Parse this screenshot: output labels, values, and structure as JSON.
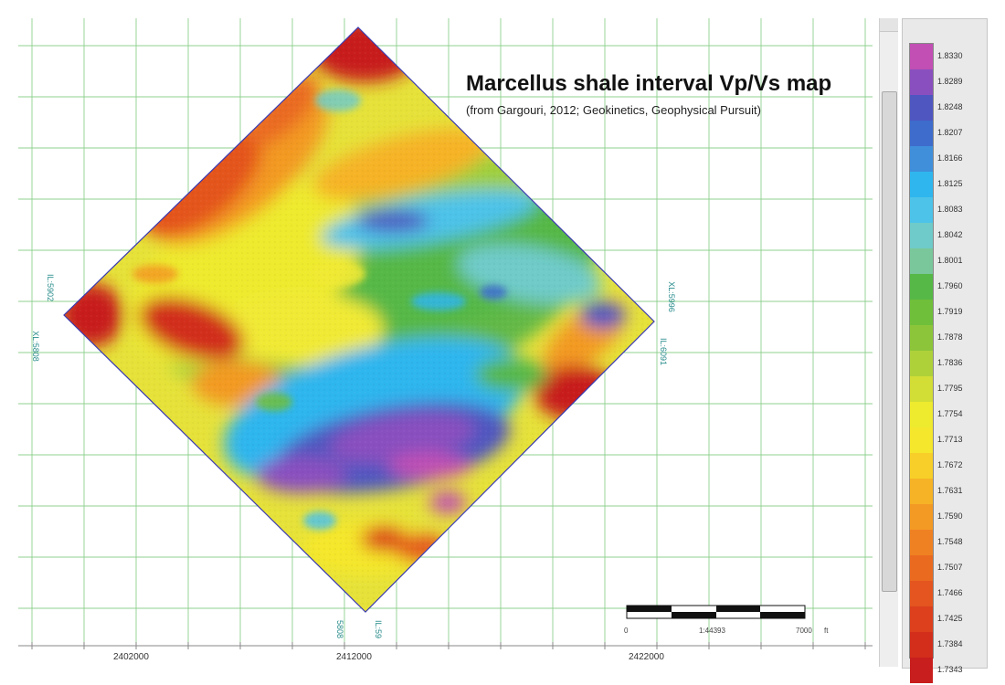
{
  "title": "Marcellus shale interval Vp/Vs map",
  "subtitle": "(from Gargouri, 2012; Geokinetics, Geophysical Pursuit)",
  "x_axis_labels": [
    "2402000",
    "2412000",
    "2422000"
  ],
  "scale_bar": {
    "start": "0",
    "ratio": "1:44393",
    "end": "7000",
    "unit": "ft"
  },
  "corner_labels": {
    "left_upper": "IL:5902",
    "left_lower": "XL:5808",
    "right_upper": "XL:5996",
    "right_lower": "IL:6091",
    "bottom_left": "5808",
    "bottom_right": "IL:59"
  },
  "legend": {
    "values": [
      "1.8330",
      "1.8289",
      "1.8248",
      "1.8207",
      "1.8166",
      "1.8125",
      "1.8083",
      "1.8042",
      "1.8001",
      "1.7960",
      "1.7919",
      "1.7878",
      "1.7836",
      "1.7795",
      "1.7754",
      "1.7713",
      "1.7672",
      "1.7631",
      "1.7590",
      "1.7548",
      "1.7507",
      "1.7466",
      "1.7425",
      "1.7384",
      "1.7343"
    ],
    "colors": [
      "#c14fb4",
      "#8a4fbf",
      "#4f56c0",
      "#3d6ccc",
      "#3f8fdb",
      "#2fb6ee",
      "#4ec3e9",
      "#6fcbc9",
      "#7ac79b",
      "#56b847",
      "#6fbf3a",
      "#8cc53a",
      "#aed13a",
      "#d2dd36",
      "#eeea2e",
      "#f5e72c",
      "#f7cf28",
      "#f6b326",
      "#f39a24",
      "#ef8122",
      "#ea6a20",
      "#e4551f",
      "#dc401d",
      "#d22e1b",
      "#c81e1e"
    ]
  }
}
